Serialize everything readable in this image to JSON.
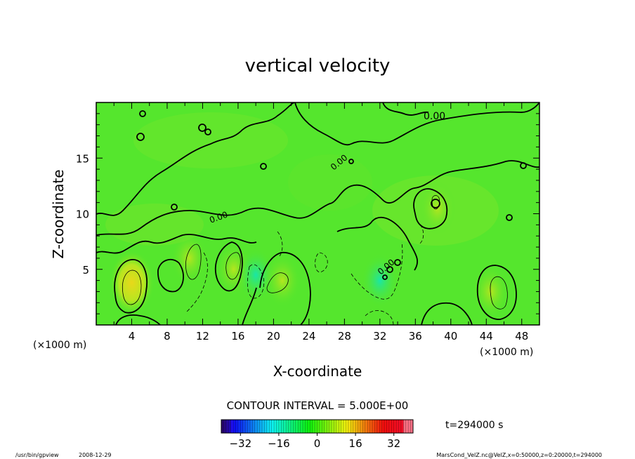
{
  "chart_data": {
    "type": "heatmap",
    "title": "vertical velocity",
    "xlabel": "X-coordinate",
    "ylabel": "Z-coordinate",
    "x_unit_left": "(×1000 m)",
    "x_unit_right": "(×1000 m)",
    "xlim": [
      0,
      50
    ],
    "ylim": [
      0,
      20
    ],
    "x_ticks": [
      4,
      8,
      12,
      16,
      20,
      24,
      28,
      32,
      36,
      40,
      44,
      48
    ],
    "y_ticks": [
      5,
      10,
      15
    ],
    "contour_label": "0.00",
    "contour_interval_text": "CONTOUR INTERVAL = 5.000E+00",
    "time_text": "t=294000 s",
    "colorbar": {
      "min": -40,
      "max": 40,
      "ticks": [
        -32,
        -16,
        0,
        16,
        32
      ]
    },
    "colors": {
      "field": "#55e62d",
      "positive_weak": "#8ae62a",
      "positive_strong": "#c9e619",
      "negative_weak": "#2ae66b",
      "negative_strong": "#19e6a8"
    },
    "field_features": [
      {
        "x": 4,
        "z": 3.8,
        "sign": "positive",
        "approx_value": 15
      },
      {
        "x": 10.5,
        "z": 6,
        "sign": "positive",
        "approx_value": 8
      },
      {
        "x": 15.5,
        "z": 5,
        "sign": "positive",
        "approx_value": 8
      },
      {
        "x": 18,
        "z": 4.5,
        "sign": "negative",
        "approx_value": -8
      },
      {
        "x": 21,
        "z": 4,
        "sign": "positive",
        "approx_value": 8
      },
      {
        "x": 32,
        "z": 4,
        "sign": "negative",
        "approx_value": -8
      },
      {
        "x": 38.5,
        "z": 10.5,
        "sign": "positive",
        "approx_value": 8
      },
      {
        "x": 44.5,
        "z": 3,
        "sign": "positive",
        "approx_value": 8
      }
    ]
  },
  "footer": {
    "program": "/usr/bin/gpview",
    "date": "2008-12-29",
    "source": "MarsCond_VelZ.nc@VelZ,x=0:50000,z=0:20000,t=294000"
  }
}
